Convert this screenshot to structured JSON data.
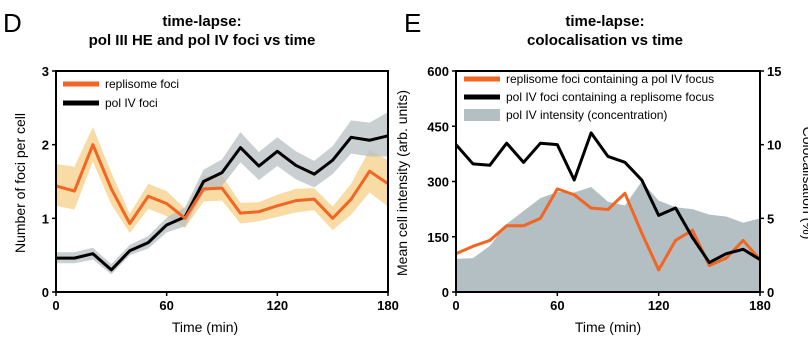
{
  "chart_data": [
    {
      "panel": "D",
      "type": "line",
      "title": [
        "time-lapse:",
        "pol III HE and pol IV foci vs time"
      ],
      "xlabel": "Time (min)",
      "ylabel": "Number of foci per cell",
      "xlim": [
        0,
        180
      ],
      "ylim": [
        0,
        3
      ],
      "xticks": [
        0,
        60,
        120,
        180
      ],
      "yticks": [
        0,
        1,
        2,
        3
      ],
      "legend_position": "top-left",
      "series": [
        {
          "name": "replisome foci",
          "color": "#f26522",
          "band_color": "#f5cf87",
          "x": [
            0,
            10,
            20,
            30,
            40,
            50,
            60,
            70,
            80,
            90,
            100,
            110,
            120,
            130,
            140,
            150,
            160,
            170,
            180
          ],
          "y": [
            1.44,
            1.37,
            2.0,
            1.4,
            0.93,
            1.3,
            1.2,
            1.0,
            1.4,
            1.41,
            1.07,
            1.09,
            1.17,
            1.24,
            1.26,
            1.0,
            1.26,
            1.64,
            1.47
          ],
          "lower": [
            1.17,
            1.12,
            1.77,
            1.19,
            0.8,
            1.13,
            1.03,
            0.87,
            1.23,
            1.24,
            0.93,
            0.96,
            1.02,
            1.08,
            1.11,
            0.84,
            1.05,
            1.35,
            1.16
          ],
          "upper": [
            1.74,
            1.7,
            2.24,
            1.62,
            1.06,
            1.47,
            1.37,
            1.13,
            1.57,
            1.58,
            1.21,
            1.22,
            1.32,
            1.4,
            1.41,
            1.16,
            1.47,
            1.93,
            1.79
          ]
        },
        {
          "name": "pol IV foci",
          "color": "#000000",
          "band_color": "#b8bfc2",
          "x": [
            0,
            10,
            20,
            30,
            40,
            50,
            60,
            70,
            80,
            90,
            100,
            110,
            120,
            130,
            140,
            150,
            160,
            170,
            180
          ],
          "y": [
            0.46,
            0.46,
            0.52,
            0.3,
            0.56,
            0.67,
            0.91,
            1.02,
            1.5,
            1.62,
            1.96,
            1.71,
            1.91,
            1.72,
            1.6,
            1.79,
            2.1,
            2.06,
            2.12
          ],
          "lower": [
            0.39,
            0.39,
            0.44,
            0.24,
            0.5,
            0.59,
            0.81,
            0.89,
            1.35,
            1.44,
            1.76,
            1.52,
            1.71,
            1.53,
            1.42,
            1.6,
            1.88,
            1.84,
            1.84
          ],
          "upper": [
            0.54,
            0.54,
            0.6,
            0.38,
            0.64,
            0.76,
            1.01,
            1.15,
            1.66,
            1.8,
            2.17,
            1.9,
            2.1,
            1.91,
            1.78,
            1.98,
            2.33,
            2.3,
            2.44
          ]
        }
      ]
    },
    {
      "panel": "E",
      "type": "line",
      "title": [
        "time-lapse:",
        "colocalisation vs time"
      ],
      "xlabel": "Time (min)",
      "ylabel": "Mean cell intensity (arb. units)",
      "y2label": "Colocalisation (%)",
      "xlim": [
        0,
        180
      ],
      "ylim": [
        0,
        600
      ],
      "y2lim": [
        0,
        15
      ],
      "xticks": [
        0,
        60,
        120,
        180
      ],
      "yticks": [
        0,
        150,
        300,
        450,
        600
      ],
      "y2ticks": [
        0,
        5,
        10,
        15
      ],
      "legend_position": "top",
      "series": [
        {
          "name": "replisome foci containing a pol IV focus",
          "color": "#f26522",
          "axis": "right",
          "x": [
            0,
            10,
            20,
            30,
            40,
            50,
            60,
            70,
            80,
            90,
            100,
            110,
            120,
            130,
            140,
            150,
            160,
            170,
            180
          ],
          "y": [
            2.6,
            3.1,
            3.5,
            4.5,
            4.5,
            5.0,
            7.0,
            6.6,
            5.7,
            5.6,
            6.7,
            4.0,
            1.5,
            3.5,
            4.2,
            1.8,
            2.3,
            3.5,
            2.2
          ]
        },
        {
          "name": "pol IV foci containing a replisome focus",
          "color": "#000000",
          "axis": "right",
          "x": [
            0,
            10,
            20,
            30,
            40,
            50,
            60,
            70,
            80,
            90,
            100,
            110,
            120,
            130,
            140,
            150,
            160,
            170,
            180
          ],
          "y": [
            10.0,
            8.7,
            8.6,
            10.1,
            8.8,
            10.1,
            10.0,
            7.6,
            10.8,
            9.2,
            8.8,
            7.6,
            5.2,
            5.7,
            3.7,
            2.0,
            2.6,
            2.9,
            2.2
          ]
        },
        {
          "name": "pol IV intensity (concentration)",
          "color": "#b3bfc2",
          "type": "area",
          "axis": "left",
          "x": [
            0,
            10,
            20,
            30,
            40,
            50,
            60,
            70,
            80,
            90,
            100,
            110,
            120,
            130,
            140,
            150,
            160,
            170,
            180
          ],
          "y": [
            90,
            92,
            125,
            185,
            220,
            255,
            272,
            270,
            285,
            245,
            235,
            300,
            248,
            230,
            225,
            210,
            205,
            188,
            200
          ]
        }
      ]
    }
  ]
}
